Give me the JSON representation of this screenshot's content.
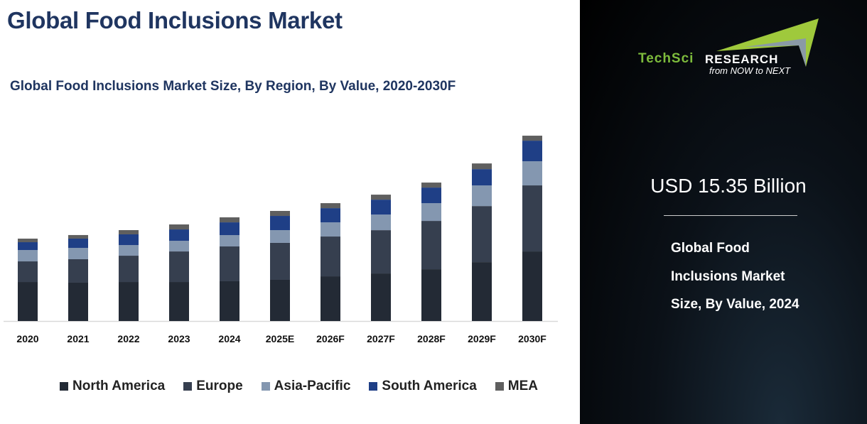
{
  "header": {
    "title": "Global Food Inclusions Market"
  },
  "chart_data": {
    "type": "bar",
    "stacked": true,
    "title": "Global Food Inclusions Market Size, By Region, By Value, 2020-2030F",
    "xlabel": "",
    "ylabel": "",
    "categories": [
      "2020",
      "2021",
      "2022",
      "2023",
      "2024",
      "2025E",
      "2026F",
      "2027F",
      "2028F",
      "2029F",
      "2030F"
    ],
    "series": [
      {
        "name": "North America",
        "color": "#232a35",
        "values": [
          5.78,
          5.68,
          5.78,
          5.78,
          5.89,
          6.1,
          6.62,
          7.04,
          7.67,
          8.72,
          10.3
        ]
      },
      {
        "name": "Europe",
        "color": "#363f4f",
        "values": [
          3.05,
          3.47,
          3.89,
          4.52,
          5.15,
          5.47,
          5.89,
          6.41,
          7.15,
          8.3,
          9.78
        ]
      },
      {
        "name": "Asia-Pacific",
        "color": "#8497b0",
        "values": [
          1.68,
          1.68,
          1.58,
          1.58,
          1.68,
          1.89,
          2.1,
          2.31,
          2.63,
          3.05,
          3.57
        ]
      },
      {
        "name": "South America",
        "color": "#1f3f86",
        "values": [
          1.16,
          1.37,
          1.58,
          1.68,
          1.89,
          2.1,
          2.1,
          2.21,
          2.31,
          2.42,
          3.05
        ]
      },
      {
        "name": "MEA",
        "color": "#5f5f5f",
        "values": [
          0.53,
          0.53,
          0.63,
          0.74,
          0.74,
          0.74,
          0.74,
          0.74,
          0.74,
          0.84,
          0.74
        ]
      }
    ],
    "grid": false,
    "legend_position": "bottom"
  },
  "panel": {
    "logo_text_1": "TechSci",
    "logo_text_2": "Research",
    "logo_tagline": "from NOW to NEXT",
    "value": "USD 15.35 Billion",
    "description_lines": [
      "Global Food",
      "Inclusions Market",
      "Size, By Value, 2024"
    ]
  }
}
